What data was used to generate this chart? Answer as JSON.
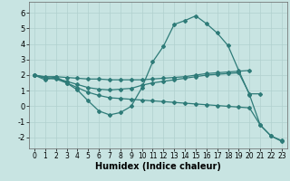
{
  "xlabel": "Humidex (Indice chaleur)",
  "xlim": [
    -0.5,
    23.5
  ],
  "ylim": [
    -2.7,
    6.7
  ],
  "xticks": [
    0,
    1,
    2,
    3,
    4,
    5,
    6,
    7,
    8,
    9,
    10,
    11,
    12,
    13,
    14,
    15,
    16,
    17,
    18,
    19,
    20,
    21,
    22,
    23
  ],
  "yticks": [
    -2,
    -1,
    0,
    1,
    2,
    3,
    4,
    5,
    6
  ],
  "bg_color": "#c8e4e2",
  "grid_color": "#b0d0ce",
  "line_color": "#2e7b78",
  "lines": [
    {
      "x": [
        0,
        1,
        2,
        3,
        4,
        5,
        6,
        7,
        8,
        9,
        10,
        11,
        12,
        13,
        14,
        15,
        16,
        17,
        18,
        19,
        20,
        21,
        22,
        23
      ],
      "y": [
        2.0,
        1.7,
        1.9,
        1.5,
        1.05,
        0.35,
        -0.3,
        -0.55,
        -0.4,
        0.0,
        1.2,
        2.85,
        3.85,
        5.25,
        5.5,
        5.8,
        5.3,
        4.7,
        3.9,
        2.3,
        0.75,
        -1.2,
        -1.9,
        -2.25
      ]
    },
    {
      "x": [
        0,
        1,
        2,
        3,
        4,
        5,
        6,
        7,
        8,
        9,
        10,
        11,
        12,
        13,
        14,
        15,
        16,
        17,
        18,
        19,
        20
      ],
      "y": [
        2.0,
        1.9,
        1.9,
        1.85,
        1.8,
        1.75,
        1.75,
        1.7,
        1.7,
        1.7,
        1.7,
        1.75,
        1.8,
        1.85,
        1.9,
        2.0,
        2.1,
        2.15,
        2.2,
        2.25,
        2.3
      ]
    },
    {
      "x": [
        0,
        1,
        2,
        3,
        4,
        5,
        6,
        7,
        8,
        9,
        10,
        11,
        12,
        13,
        14,
        15,
        16,
        17,
        18,
        19,
        20,
        21
      ],
      "y": [
        2.0,
        1.85,
        1.8,
        1.6,
        1.4,
        1.2,
        1.1,
        1.05,
        1.1,
        1.15,
        1.35,
        1.5,
        1.6,
        1.7,
        1.8,
        1.9,
        2.0,
        2.05,
        2.1,
        2.15,
        0.8,
        0.8
      ]
    },
    {
      "x": [
        0,
        1,
        2,
        3,
        4,
        5,
        6,
        7,
        8,
        9,
        10,
        11,
        12,
        13,
        14,
        15,
        16,
        17,
        18,
        19,
        20,
        21,
        22,
        23
      ],
      "y": [
        2.0,
        1.8,
        1.75,
        1.5,
        1.2,
        0.9,
        0.7,
        0.55,
        0.5,
        0.45,
        0.4,
        0.35,
        0.3,
        0.25,
        0.2,
        0.15,
        0.1,
        0.05,
        0.0,
        -0.05,
        -0.1,
        -1.2,
        -1.9,
        -2.2
      ]
    }
  ]
}
